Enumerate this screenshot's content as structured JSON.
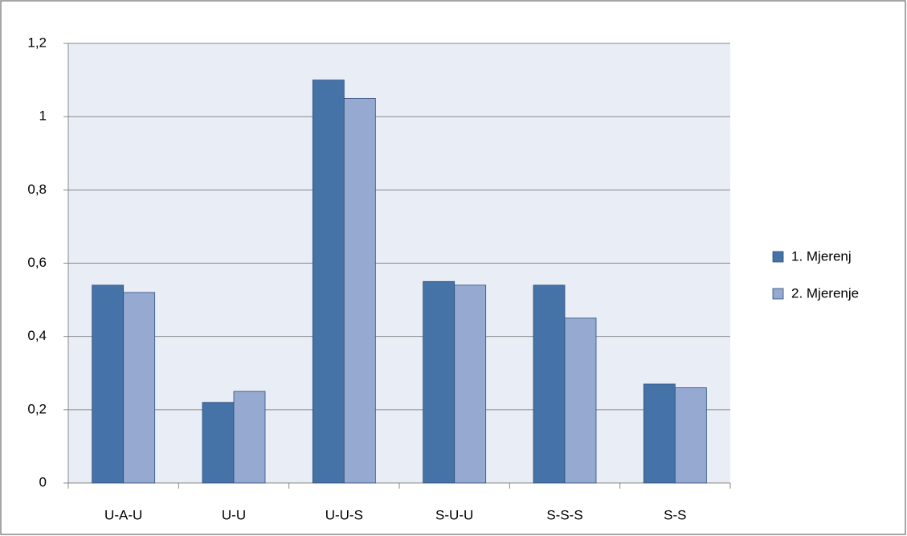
{
  "chart_data": {
    "type": "bar",
    "categories": [
      "U-A-U",
      "U-U",
      "U-U-S",
      "S-U-U",
      "S-S-S",
      "S-S"
    ],
    "series": [
      {
        "name": "1. Mjerenj",
        "color": "#4572a7",
        "values": [
          0.54,
          0.22,
          1.1,
          0.55,
          0.54,
          0.27
        ]
      },
      {
        "name": "2. Mjerenje",
        "color": "#95a9d1",
        "values": [
          0.52,
          0.25,
          1.05,
          0.54,
          0.45,
          0.26
        ]
      }
    ],
    "ylim": [
      0,
      1.2
    ],
    "yticks": [
      0,
      {
        "value": 0.2,
        "label": "0,2"
      },
      {
        "value": 0.4,
        "label": "0,4"
      },
      {
        "value": 0.6,
        "label": "0,6"
      },
      {
        "value": 0.8,
        "label": "0,8"
      },
      1,
      {
        "value": 1.2,
        "label": "1,2"
      }
    ],
    "grid": true,
    "legend": "right"
  }
}
